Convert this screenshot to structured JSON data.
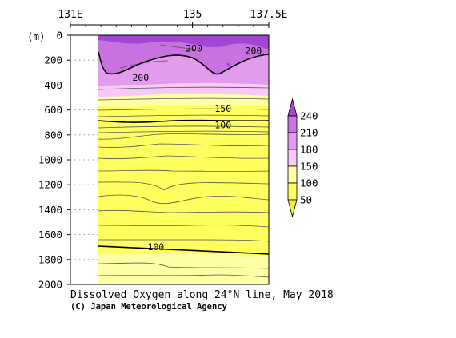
{
  "chart_data": {
    "type": "heatmap",
    "title": "Dissolved Oxygen along 24°N line, May 2018",
    "credit": "(C) Japan Meteorological Agency",
    "y_unit_label": "(m)",
    "x_ticks": [
      {
        "lon": 131,
        "label": "131E"
      },
      {
        "lon": 135,
        "label": "135"
      },
      {
        "lon": 137.5,
        "label": "137.5E"
      }
    ],
    "xlim": [
      131,
      137.5
    ],
    "data_lon_start": 132.1,
    "ylim": [
      0,
      2000
    ],
    "y_ticks": [
      0,
      200,
      400,
      600,
      800,
      1000,
      1200,
      1400,
      1600,
      1800,
      2000
    ],
    "y_tick_labels": [
      "0",
      "200",
      "400",
      "600",
      "800",
      "1000",
      "1200",
      "1400",
      "1600",
      "1800",
      "2000"
    ],
    "colorbar": {
      "levels": [
        50,
        100,
        150,
        180,
        210,
        240
      ],
      "labels": [
        "50",
        "100",
        "150",
        "180",
        "210",
        "240"
      ],
      "colors": [
        "#f2f23a",
        "#ffff60",
        "#ffffa8",
        "#f8c8f8",
        "#e29cec",
        "#c872e2",
        "#a246d6"
      ]
    },
    "contour_labels": [
      {
        "text": "200",
        "lon": 135.05,
        "depth": 105
      },
      {
        "text": "200",
        "lon": 137.0,
        "depth": 125
      },
      {
        "text": "200",
        "lon": 133.3,
        "depth": 340
      },
      {
        "text": "150",
        "lon": 136.0,
        "depth": 590
      },
      {
        "text": "100",
        "lon": 136.0,
        "depth": 720
      },
      {
        "text": "100",
        "lon": 133.8,
        "depth": 1700
      }
    ]
  }
}
